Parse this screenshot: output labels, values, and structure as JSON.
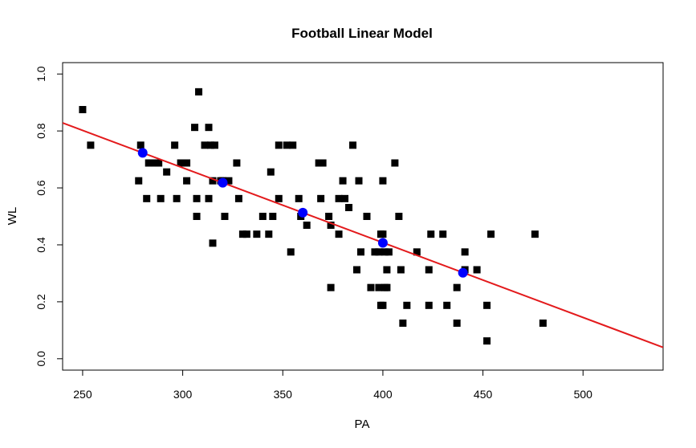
{
  "chart_data": {
    "type": "scatter",
    "title": "Football Linear Model",
    "xlabel": "PA",
    "ylabel": "WL",
    "xlim": [
      240,
      540
    ],
    "ylim": [
      -0.04,
      1.04
    ],
    "x_ticks": [
      250,
      300,
      350,
      400,
      450,
      500
    ],
    "y_ticks": [
      0.0,
      0.2,
      0.4,
      0.6,
      0.8,
      1.0
    ],
    "x_tick_labels": [
      "250",
      "300",
      "350",
      "400",
      "450",
      "500"
    ],
    "y_tick_labels": [
      "0.0",
      "0.2",
      "0.4",
      "0.6",
      "0.8",
      "1.0"
    ],
    "grid": false,
    "legend": "none",
    "colors": {
      "points": "#000000",
      "fit_line": "#e31a1c",
      "predicted": "#0000ff"
    },
    "series": [
      {
        "marker": "square",
        "points": [
          [
            250,
            0.875
          ],
          [
            254,
            0.75
          ],
          [
            278,
            0.625
          ],
          [
            279,
            0.75
          ],
          [
            282,
            0.5625
          ],
          [
            283,
            0.6875
          ],
          [
            286,
            0.6875
          ],
          [
            288,
            0.6875
          ],
          [
            289,
            0.5625
          ],
          [
            292,
            0.656
          ],
          [
            296,
            0.75
          ],
          [
            297,
            0.5625
          ],
          [
            299,
            0.6875
          ],
          [
            302,
            0.625
          ],
          [
            302,
            0.6875
          ],
          [
            306,
            0.8125
          ],
          [
            307,
            0.5625
          ],
          [
            307,
            0.5
          ],
          [
            308,
            0.9375
          ],
          [
            311,
            0.75
          ],
          [
            313,
            0.8125
          ],
          [
            313,
            0.5625
          ],
          [
            314,
            0.75
          ],
          [
            315,
            0.625
          ],
          [
            315,
            0.406
          ],
          [
            316,
            0.75
          ],
          [
            319,
            0.625
          ],
          [
            320,
            0.625
          ],
          [
            321,
            0.5
          ],
          [
            323,
            0.625
          ],
          [
            327,
            0.6875
          ],
          [
            328,
            0.5625
          ],
          [
            330,
            0.4375
          ],
          [
            332,
            0.4375
          ],
          [
            337,
            0.4375
          ],
          [
            340,
            0.5
          ],
          [
            343,
            0.4375
          ],
          [
            344,
            0.656
          ],
          [
            345,
            0.5
          ],
          [
            348,
            0.5625
          ],
          [
            348,
            0.75
          ],
          [
            352,
            0.75
          ],
          [
            354,
            0.375
          ],
          [
            355,
            0.75
          ],
          [
            358,
            0.5625
          ],
          [
            359,
            0.5
          ],
          [
            362,
            0.469
          ],
          [
            368,
            0.6875
          ],
          [
            369,
            0.5625
          ],
          [
            370,
            0.6875
          ],
          [
            373,
            0.5
          ],
          [
            374,
            0.25
          ],
          [
            374,
            0.469
          ],
          [
            378,
            0.4375
          ],
          [
            378,
            0.5625
          ],
          [
            380,
            0.625
          ],
          [
            381,
            0.5625
          ],
          [
            383,
            0.531
          ],
          [
            385,
            0.75
          ],
          [
            387,
            0.3125
          ],
          [
            388,
            0.625
          ],
          [
            389,
            0.375
          ],
          [
            392,
            0.5
          ],
          [
            394,
            0.25
          ],
          [
            396,
            0.375
          ],
          [
            398,
            0.375
          ],
          [
            398,
            0.25
          ],
          [
            399,
            0.1875
          ],
          [
            399,
            0.4375
          ],
          [
            400,
            0.625
          ],
          [
            400,
            0.1875
          ],
          [
            400,
            0.4375
          ],
          [
            401,
            0.375
          ],
          [
            401,
            0.25
          ],
          [
            402,
            0.3125
          ],
          [
            402,
            0.25
          ],
          [
            403,
            0.375
          ],
          [
            406,
            0.6875
          ],
          [
            408,
            0.5
          ],
          [
            409,
            0.3125
          ],
          [
            410,
            0.125
          ],
          [
            412,
            0.1875
          ],
          [
            417,
            0.375
          ],
          [
            423,
            0.1875
          ],
          [
            423,
            0.3125
          ],
          [
            424,
            0.4375
          ],
          [
            430,
            0.4375
          ],
          [
            432,
            0.1875
          ],
          [
            437,
            0.125
          ],
          [
            437,
            0.25
          ],
          [
            441,
            0.375
          ],
          [
            441,
            0.3125
          ],
          [
            447,
            0.3125
          ],
          [
            452,
            0.1875
          ],
          [
            452,
            0.0625
          ],
          [
            454,
            0.4375
          ],
          [
            476,
            0.4375
          ],
          [
            480,
            0.125
          ]
        ]
      },
      {
        "marker": "circle",
        "points": [
          [
            280,
            0.723
          ],
          [
            320,
            0.618
          ],
          [
            360,
            0.513
          ],
          [
            400,
            0.407
          ],
          [
            440,
            0.302
          ]
        ]
      }
    ],
    "fit_line": {
      "intercept": 1.459,
      "slope": -0.002628
    }
  }
}
